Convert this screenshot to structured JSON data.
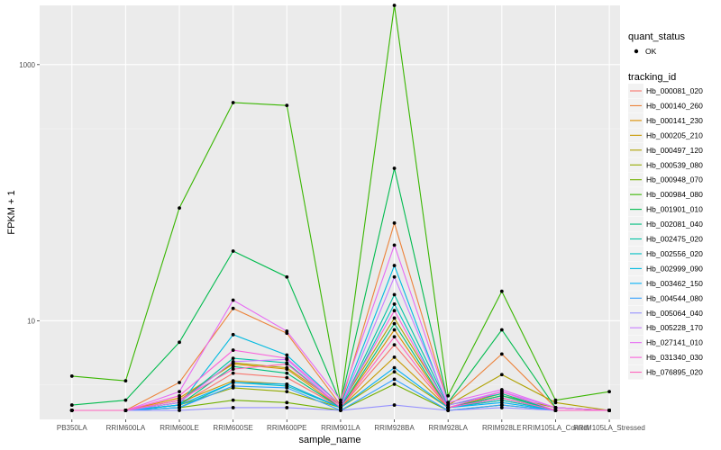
{
  "chart_data": {
    "type": "line",
    "xlabel": "sample_name",
    "ylabel": "FPKM + 1",
    "y_scale": "log10",
    "ylim": [
      1.7,
      2900
    ],
    "y_ticks": [
      {
        "value": 10,
        "label": "10"
      },
      {
        "value": 1000,
        "label": "1000"
      }
    ],
    "grid": true,
    "legend_position": "right",
    "categories": [
      "PB350LA",
      "RRIM600LA",
      "RRIM600LE",
      "RRIM600SE",
      "RRIM600PE",
      "RRIM901LA",
      "RRIM928BA",
      "RRIM928LA",
      "RRIM928LE",
      "RRIM105LA_Control",
      "RRIM105LA_Stressed"
    ],
    "shape_legend": {
      "title": "quant_status",
      "items": [
        {
          "label": "OK"
        }
      ]
    },
    "color_legend_title": "tracking_id",
    "series": [
      {
        "name": "Hb_000081_020",
        "color": "#F8766D",
        "values": [
          2,
          2,
          2.2,
          3.9,
          3.6,
          2.1,
          6.5,
          2.1,
          2.5,
          2,
          2
        ]
      },
      {
        "name": "Hb_000140_260",
        "color": "#EC8239",
        "values": [
          2,
          2,
          3.3,
          12.5,
          8,
          2.2,
          58,
          2.3,
          5.5,
          2.1,
          2
        ]
      },
      {
        "name": "Hb_000141_230",
        "color": "#DB8E00",
        "values": [
          2,
          2,
          2.5,
          4.6,
          4.2,
          2.1,
          8.5,
          2.1,
          2.7,
          2,
          2
        ]
      },
      {
        "name": "Hb_000205_210",
        "color": "#C79800",
        "values": [
          2,
          2,
          2.3,
          3.4,
          3.2,
          2.1,
          5.2,
          2.1,
          2.4,
          2,
          2
        ]
      },
      {
        "name": "Hb_000497_120",
        "color": "#AFA100",
        "values": [
          2,
          2,
          2.4,
          4.7,
          4.3,
          2.2,
          10.5,
          2.2,
          3.8,
          2.3,
          2
        ]
      },
      {
        "name": "Hb_000539_080",
        "color": "#93AA00",
        "values": [
          2,
          2,
          2.2,
          3.0,
          2.8,
          2.1,
          4.0,
          2.1,
          2.6,
          2.1,
          2
        ]
      },
      {
        "name": "Hb_000948_070",
        "color": "#72B000",
        "values": [
          2,
          2,
          2.1,
          2.4,
          2.3,
          2.0,
          3.2,
          2.0,
          2.2,
          2.0,
          2
        ]
      },
      {
        "name": "Hb_000984_080",
        "color": "#39B600",
        "values": [
          3.7,
          3.4,
          76,
          505,
          480,
          2.3,
          2900,
          2.6,
          17,
          2.4,
          2.8
        ]
      },
      {
        "name": "Hb_001901_010",
        "color": "#00BB4E",
        "values": [
          2.2,
          2.4,
          6.8,
          35,
          22,
          2.3,
          155,
          2.3,
          8.5,
          2.1,
          2
        ]
      },
      {
        "name": "Hb_002081_040",
        "color": "#00BF7D",
        "values": [
          2,
          2,
          2.2,
          4.4,
          3.9,
          2.1,
          9.5,
          2.1,
          2.6,
          2,
          2
        ]
      },
      {
        "name": "Hb_002475_020",
        "color": "#00C1A3",
        "values": [
          2,
          2,
          2.3,
          5.1,
          4.7,
          2.1,
          16,
          2.2,
          2.7,
          2,
          2
        ]
      },
      {
        "name": "Hb_002556_020",
        "color": "#00BFC4",
        "values": [
          2,
          2,
          2.1,
          3.3,
          3.1,
          2.1,
          13.5,
          2.1,
          2.4,
          2,
          2
        ]
      },
      {
        "name": "Hb_002999_090",
        "color": "#00BAE0",
        "values": [
          2,
          2,
          2.2,
          7.8,
          5.4,
          2.2,
          27,
          2.1,
          2.5,
          2,
          2
        ]
      },
      {
        "name": "Hb_003462_150",
        "color": "#00B0F6",
        "values": [
          2,
          2,
          2.2,
          3.3,
          3.2,
          2.1,
          4.3,
          2.1,
          2.3,
          2,
          2
        ]
      },
      {
        "name": "Hb_004544_080",
        "color": "#35A2FF",
        "values": [
          2,
          2,
          2.1,
          3.1,
          3.0,
          2.0,
          3.5,
          2.0,
          2.2,
          2,
          2
        ]
      },
      {
        "name": "Hb_005064_040",
        "color": "#9590FF",
        "values": [
          2,
          2,
          2.0,
          2.1,
          2.1,
          2.0,
          2.2,
          2.0,
          2.1,
          2,
          2
        ]
      },
      {
        "name": "Hb_005228_170",
        "color": "#C77CFF",
        "values": [
          2,
          2,
          2.3,
          4.8,
          5.0,
          2.1,
          22,
          2.2,
          2.8,
          2.1,
          2
        ]
      },
      {
        "name": "Hb_027141_010",
        "color": "#E76BF3",
        "values": [
          2,
          2,
          2.8,
          14.5,
          8.3,
          2.4,
          39,
          2.3,
          2.9,
          2.1,
          2
        ]
      },
      {
        "name": "Hb_031340_030",
        "color": "#FA62DB",
        "values": [
          2,
          2,
          2.6,
          5.9,
          5.1,
          2.2,
          12,
          2.1,
          2.8,
          2,
          2
        ]
      },
      {
        "name": "Hb_076895_020",
        "color": "#FF62BC",
        "values": [
          2,
          2,
          2.4,
          4.2,
          4.6,
          2.1,
          7.5,
          2.1,
          2.5,
          2,
          2
        ]
      }
    ]
  }
}
